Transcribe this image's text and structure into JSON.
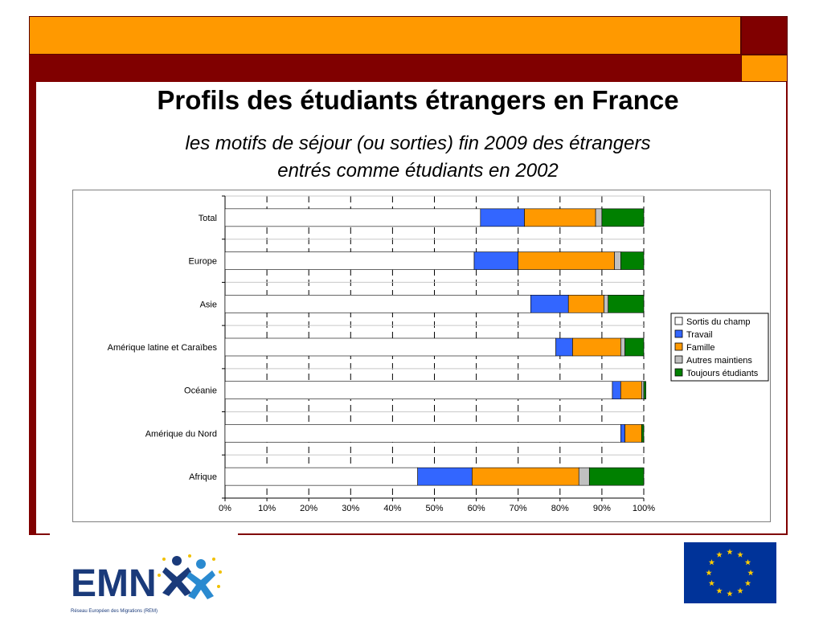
{
  "slide": {
    "title": "Profils des étudiants étrangers en France",
    "subtitle_line1": "les motifs de séjour (ou sorties) fin 2009 des étrangers",
    "subtitle_line2": "entrés comme étudiants en 2002"
  },
  "logo": {
    "name": "EMN",
    "tagline": "Réseau Européen des Migrations (REM)"
  },
  "colors": {
    "orange": "#ff9900",
    "maroon": "#800000",
    "eu_blue": "#003399",
    "eu_star": "#ffcc00"
  },
  "chart_data": {
    "type": "bar",
    "orientation": "horizontal",
    "stacked": true,
    "categories": [
      "Total",
      "Europe",
      "Asie",
      "Amérique latine et Caraïbes",
      "Océanie",
      "Amérique du Nord",
      "Afrique"
    ],
    "series": [
      {
        "name": "Sortis du champ",
        "color": "#ffffff",
        "values": [
          61,
          59.5,
          73,
          79,
          92.5,
          94.5,
          46
        ]
      },
      {
        "name": "Travail",
        "color": "#3366ff",
        "values": [
          10.5,
          10.5,
          9,
          4,
          2,
          1,
          13
        ]
      },
      {
        "name": "Famille",
        "color": "#ff9900",
        "values": [
          17,
          23,
          8.5,
          11.5,
          5,
          4,
          25.5
        ]
      },
      {
        "name": "Autres maintiens",
        "color": "#c0c0c0",
        "values": [
          1.5,
          1.5,
          1,
          1,
          0.5,
          0,
          2.5
        ]
      },
      {
        "name": "Toujours étudiants",
        "color": "#008000",
        "values": [
          10,
          5.5,
          8.5,
          4.5,
          0.5,
          0.5,
          13
        ]
      }
    ],
    "x_ticks": [
      "0%",
      "10%",
      "20%",
      "30%",
      "40%",
      "50%",
      "60%",
      "70%",
      "80%",
      "90%",
      "100%"
    ],
    "xlim": [
      0,
      100
    ],
    "grid": "vertical dashed",
    "legend_position": "right"
  }
}
